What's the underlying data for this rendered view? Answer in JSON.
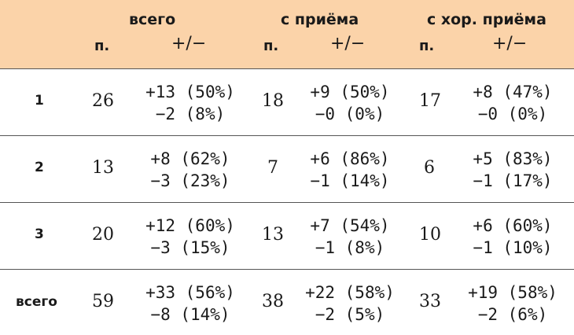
{
  "header": {
    "groups": [
      "всего",
      "с приёма",
      "с хор. приёма"
    ],
    "sub_n": "п.",
    "sub_pm": "+/−"
  },
  "rows": [
    {
      "label": "1",
      "cells": [
        {
          "n": "26",
          "plus": "+13 (50%)",
          "minus": "−2 (8%)"
        },
        {
          "n": "18",
          "plus": "+9 (50%)",
          "minus": "−0 (0%)"
        },
        {
          "n": "17",
          "plus": "+8 (47%)",
          "minus": "−0 (0%)"
        }
      ]
    },
    {
      "label": "2",
      "cells": [
        {
          "n": "13",
          "plus": "+8 (62%)",
          "minus": "−3 (23%)"
        },
        {
          "n": "7",
          "plus": "+6 (86%)",
          "minus": "−1 (14%)"
        },
        {
          "n": "6",
          "plus": "+5 (83%)",
          "minus": "−1 (17%)"
        }
      ]
    },
    {
      "label": "3",
      "cells": [
        {
          "n": "20",
          "plus": "+12 (60%)",
          "minus": "−3 (15%)"
        },
        {
          "n": "13",
          "plus": "+7 (54%)",
          "minus": "−1 (8%)"
        },
        {
          "n": "10",
          "plus": "+6 (60%)",
          "minus": "−1 (10%)"
        }
      ]
    },
    {
      "label": "всего",
      "cells": [
        {
          "n": "59",
          "plus": "+33 (56%)",
          "minus": "−8 (14%)"
        },
        {
          "n": "38",
          "plus": "+22 (58%)",
          "minus": "−2 (5%)"
        },
        {
          "n": "33",
          "plus": "+19 (58%)",
          "minus": "−2 (6%)"
        }
      ]
    }
  ]
}
